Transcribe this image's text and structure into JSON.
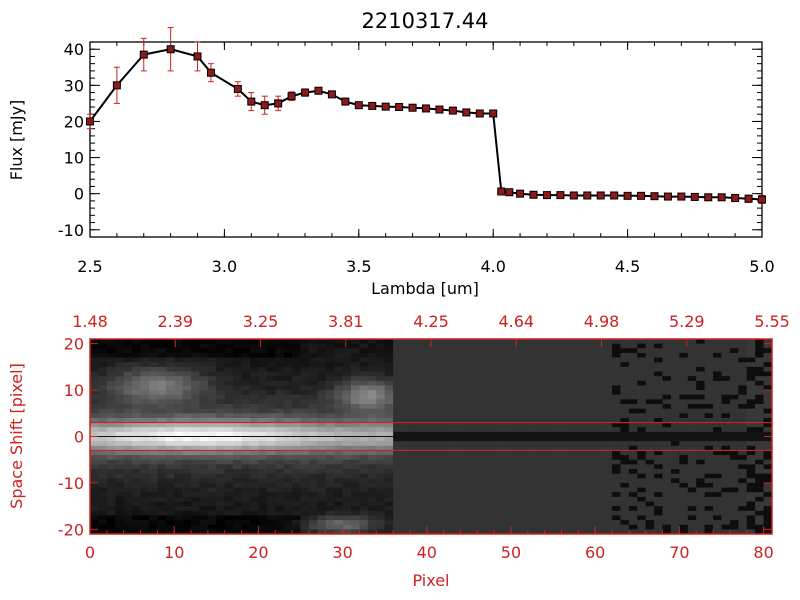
{
  "chart_data": [
    {
      "type": "line",
      "title": "2210317.44",
      "xlabel": "Lambda [um]",
      "ylabel": "Flux [mJy]",
      "xlim": [
        2.5,
        5.0
      ],
      "ylim": [
        -12,
        42
      ],
      "xticks": [
        "2.5",
        "3.0",
        "3.5",
        "4.0",
        "4.5",
        "5.0"
      ],
      "yticks": [
        "-10",
        "0",
        "10",
        "20",
        "30",
        "40"
      ],
      "colors": {
        "line": "#000000",
        "marker": "#8b1a1a",
        "errorbar": "#cc2222"
      },
      "x": [
        2.5,
        2.6,
        2.7,
        2.8,
        2.9,
        2.95,
        3.05,
        3.1,
        3.15,
        3.2,
        3.25,
        3.3,
        3.35,
        3.4,
        3.45,
        3.5,
        3.55,
        3.6,
        3.65,
        3.7,
        3.75,
        3.8,
        3.85,
        3.9,
        3.95,
        4.0,
        4.03,
        4.06,
        4.1,
        4.15,
        4.2,
        4.25,
        4.3,
        4.35,
        4.4,
        4.45,
        4.5,
        4.55,
        4.6,
        4.65,
        4.7,
        4.75,
        4.8,
        4.85,
        4.9,
        4.95,
        5.0
      ],
      "y": [
        20,
        30,
        38.5,
        40,
        38,
        33.5,
        29,
        25.5,
        24.5,
        25,
        27,
        28,
        28.5,
        27.5,
        25.5,
        24.5,
        24.3,
        24.1,
        24,
        23.8,
        23.6,
        23.3,
        23,
        22.5,
        22.2,
        22.2,
        0.6,
        0.4,
        0,
        -0.3,
        -0.4,
        -0.4,
        -0.5,
        -0.5,
        -0.5,
        -0.5,
        -0.6,
        -0.6,
        -0.7,
        -0.8,
        -0.8,
        -0.9,
        -1,
        -1,
        -1.2,
        -1.4,
        -1.6
      ],
      "yerr": [
        2,
        5,
        4.5,
        6,
        4,
        2.5,
        2,
        2.5,
        2.5,
        2,
        1.2,
        1,
        0.8,
        0.8,
        0.8,
        0.5,
        0.4,
        0.4,
        0.4,
        0.4,
        0.4,
        0.4,
        0.4,
        0.4,
        0.4,
        0.5,
        0.5,
        0.5,
        0.5,
        0.5,
        0.5,
        0.6,
        0.6,
        0.6,
        0.7,
        0.7,
        0.7,
        0.7,
        0.8,
        0.8,
        0.8,
        0.9,
        0.9,
        0.9,
        1.0,
        1.0,
        1.1
      ]
    },
    {
      "type": "heatmap",
      "xlabel": "Pixel",
      "ylabel": "Space Shift [pixel]",
      "xlim": [
        0,
        81
      ],
      "ylim": [
        -21,
        21
      ],
      "xticks": [
        "0",
        "10",
        "20",
        "30",
        "40",
        "50",
        "60",
        "70",
        "80"
      ],
      "yticks": [
        "-20",
        "-10",
        "0",
        "10",
        "20"
      ],
      "top_ticks": [
        "1.48",
        "2.39",
        "3.25",
        "3.81",
        "4.25",
        "4.64",
        "4.98",
        "5.29",
        "5.55"
      ],
      "hlines": [
        3,
        -3
      ],
      "colors": {
        "axes": "#cc2222",
        "hline": "#cc2222",
        "colormap": "grayscale"
      }
    }
  ]
}
